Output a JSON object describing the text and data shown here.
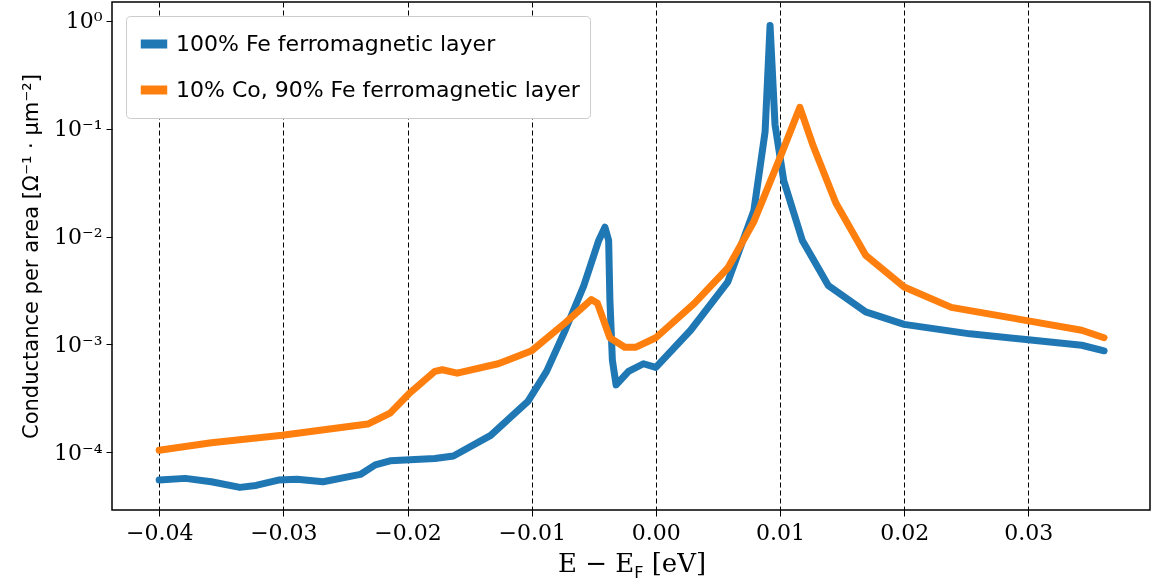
{
  "chart_data": {
    "type": "line",
    "xlabel": "E − E$_{F}$ [eV]",
    "ylabel": "Conductance per area [Ω⁻¹ · μm⁻²]",
    "log": "y",
    "xlim": [
      -0.0438,
      0.0398
    ],
    "xticks": [
      {
        "value": -0.04,
        "label": "−0.04"
      },
      {
        "value": -0.03,
        "label": "−0.03"
      },
      {
        "value": -0.02,
        "label": "−0.02"
      },
      {
        "value": -0.01,
        "label": "−0.01"
      },
      {
        "value": 0,
        "label": "0.00"
      },
      {
        "value": 0.01,
        "label": "0.01"
      },
      {
        "value": 0.02,
        "label": "0.02"
      },
      {
        "value": 0.03,
        "label": "0.03"
      }
    ],
    "ylim": [
      2.9e-05,
      1.5
    ],
    "yticks": [
      {
        "value": 0.0001,
        "label": "10⁻⁴"
      },
      {
        "value": 0.001,
        "label": "10⁻³"
      },
      {
        "value": 0.01,
        "label": "10⁻²"
      },
      {
        "value": 0.1,
        "label": "10⁻¹"
      },
      {
        "value": 1,
        "label": "10⁰"
      }
    ],
    "grid": "x",
    "legend": "top left",
    "series": [
      {
        "name": "100% Fe ferromagnetic layer",
        "color": "#1f77b4",
        "x": [
          -0.04,
          -0.0379,
          -0.0358,
          -0.0335,
          -0.0322,
          -0.0304,
          -0.0289,
          -0.0268,
          -0.0238,
          -0.0226,
          -0.0214,
          -0.0178,
          -0.0163,
          -0.0133,
          -0.0103,
          -0.0088,
          -0.0073,
          -0.0058,
          -0.0046,
          -0.0041,
          -0.0038,
          -0.0037,
          -0.0035,
          -0.0032,
          -0.0022,
          -0.001,
          0.0,
          0.0028,
          0.0058,
          0.0079,
          0.0088,
          0.0092,
          0.0096,
          0.0103,
          0.0118,
          0.0139,
          0.0169,
          0.02,
          0.0253,
          0.03,
          0.0343,
          0.0361
        ],
        "values": [
          5.5e-05,
          5.7e-05,
          5.3e-05,
          4.7e-05,
          4.9e-05,
          5.5e-05,
          5.6e-05,
          5.3e-05,
          6.2e-05,
          7.6e-05,
          8.3e-05,
          8.7e-05,
          9.2e-05,
          0.000143,
          0.000295,
          0.00056,
          0.00135,
          0.0035,
          0.0092,
          0.0122,
          0.0092,
          0.0026,
          0.00071,
          0.00042,
          0.00056,
          0.00066,
          0.00061,
          0.00135,
          0.0038,
          0.0175,
          0.094,
          0.91,
          0.109,
          0.033,
          0.0092,
          0.0035,
          0.002,
          0.00153,
          0.00125,
          0.0011,
          0.00098,
          0.00087
        ]
      },
      {
        "name": "10% Co, 90% Fe ferromagnetic layer",
        "color": "#ff7f0e",
        "x": [
          -0.04,
          -0.0358,
          -0.0301,
          -0.0232,
          -0.0214,
          -0.0199,
          -0.0178,
          -0.0172,
          -0.016,
          -0.0127,
          -0.01,
          -0.0073,
          -0.0052,
          -0.0047,
          -0.0037,
          -0.0025,
          -0.0016,
          0.0,
          0.0031,
          0.0058,
          0.0079,
          0.01,
          0.0116,
          0.0127,
          0.0145,
          0.0169,
          0.02,
          0.0238,
          0.03,
          0.0343,
          0.0361
        ],
        "values": [
          0.000104,
          0.000122,
          0.000143,
          0.000182,
          0.00023,
          0.000346,
          0.00056,
          0.00058,
          0.00054,
          0.00066,
          0.00087,
          0.00158,
          0.0026,
          0.0024,
          0.00115,
          0.00094,
          0.00094,
          0.00115,
          0.0024,
          0.0051,
          0.0138,
          0.054,
          0.158,
          0.068,
          0.0205,
          0.0067,
          0.0034,
          0.0022,
          0.00165,
          0.00135,
          0.00115
        ]
      }
    ]
  }
}
